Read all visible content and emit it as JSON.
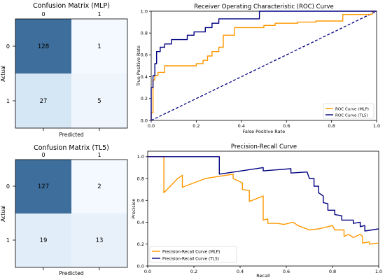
{
  "chart_data": [
    {
      "type": "heatmap",
      "title": "Confusion Matrix (MLP)",
      "xlabel": "Predicted",
      "ylabel": "Actual",
      "x_ticks": [
        "0",
        "1"
      ],
      "y_ticks": [
        "0",
        "1"
      ],
      "values": [
        [
          128,
          1
        ],
        [
          27,
          5
        ]
      ]
    },
    {
      "type": "line",
      "title": "Receiver Operating Characteristic (ROC) Curve",
      "xlabel": "False Positive Rate",
      "ylabel": "True Positive Rate",
      "xlim": [
        0,
        1
      ],
      "ylim": [
        0,
        1
      ],
      "x_ticks": [
        "0.0",
        "0.2",
        "0.4",
        "0.6",
        "0.8",
        "1.0"
      ],
      "y_ticks": [
        "0.0",
        "0.2",
        "0.4",
        "0.6",
        "0.8",
        "1.0"
      ],
      "legend": "lower right",
      "series": [
        {
          "name": "ROC Curve (MLP)",
          "color": "#ff9800",
          "points": [
            [
              0,
              0
            ],
            [
              0,
              0.07
            ],
            [
              0.008,
              0.07
            ],
            [
              0.008,
              0.22
            ],
            [
              0.008,
              0.37
            ],
            [
              0.016,
              0.37
            ],
            [
              0.016,
              0.41
            ],
            [
              0.03,
              0.41
            ],
            [
              0.03,
              0.44
            ],
            [
              0.06,
              0.44
            ],
            [
              0.06,
              0.5
            ],
            [
              0.2,
              0.5
            ],
            [
              0.2,
              0.52
            ],
            [
              0.23,
              0.52
            ],
            [
              0.23,
              0.55
            ],
            [
              0.25,
              0.55
            ],
            [
              0.25,
              0.59
            ],
            [
              0.27,
              0.59
            ],
            [
              0.27,
              0.63
            ],
            [
              0.3,
              0.63
            ],
            [
              0.3,
              0.67
            ],
            [
              0.32,
              0.67
            ],
            [
              0.32,
              0.78
            ],
            [
              0.37,
              0.78
            ],
            [
              0.37,
              0.85
            ],
            [
              0.5,
              0.85
            ],
            [
              0.5,
              0.87
            ],
            [
              0.55,
              0.87
            ],
            [
              0.55,
              0.89
            ],
            [
              0.57,
              0.89
            ],
            [
              0.65,
              0.89
            ],
            [
              0.65,
              0.9
            ],
            [
              0.73,
              0.9
            ],
            [
              0.73,
              0.91
            ],
            [
              0.85,
              0.91
            ],
            [
              0.85,
              0.97
            ],
            [
              0.98,
              0.97
            ],
            [
              0.98,
              1.0
            ],
            [
              1.0,
              1.0
            ]
          ]
        },
        {
          "name": "ROC Curve (TL5)",
          "color": "#000080",
          "points": [
            [
              0,
              0
            ],
            [
              0,
              0.3
            ],
            [
              0.008,
              0.3
            ],
            [
              0.008,
              0.41
            ],
            [
              0.016,
              0.41
            ],
            [
              0.016,
              0.52
            ],
            [
              0.024,
              0.52
            ],
            [
              0.024,
              0.63
            ],
            [
              0.04,
              0.63
            ],
            [
              0.04,
              0.67
            ],
            [
              0.06,
              0.67
            ],
            [
              0.06,
              0.7
            ],
            [
              0.09,
              0.7
            ],
            [
              0.09,
              0.74
            ],
            [
              0.16,
              0.74
            ],
            [
              0.16,
              0.78
            ],
            [
              0.19,
              0.78
            ],
            [
              0.19,
              0.81
            ],
            [
              0.24,
              0.81
            ],
            [
              0.24,
              0.85
            ],
            [
              0.27,
              0.85
            ],
            [
              0.27,
              0.89
            ],
            [
              0.3,
              0.89
            ],
            [
              0.3,
              0.93
            ],
            [
              0.48,
              0.93
            ],
            [
              0.48,
              1.0
            ],
            [
              1.0,
              1.0
            ]
          ]
        }
      ],
      "reference_line": [
        [
          0,
          0
        ],
        [
          1,
          1
        ]
      ]
    },
    {
      "type": "heatmap",
      "title": "Confusion Matrix (TL5)",
      "xlabel": "Predicted",
      "ylabel": "Actual",
      "x_ticks": [
        "0",
        "1"
      ],
      "y_ticks": [
        "0",
        "1"
      ],
      "values": [
        [
          127,
          2
        ],
        [
          19,
          13
        ]
      ]
    },
    {
      "type": "line",
      "title": "Precision-Recall Curve",
      "xlabel": "Recall",
      "ylabel": "Precision",
      "xlim": [
        0,
        1
      ],
      "ylim": [
        0,
        1.05
      ],
      "x_ticks": [
        "0.0",
        "0.2",
        "0.4",
        "0.6",
        "0.8",
        "1.0"
      ],
      "y_ticks": [
        "0.0",
        "0.2",
        "0.4",
        "0.6",
        "0.8",
        "1.0"
      ],
      "legend": "lower left",
      "series": [
        {
          "name": "Precision-Recall Curve (MLP)",
          "color": "#ff9800",
          "points": [
            [
              0,
              1.0
            ],
            [
              0.07,
              1.0
            ],
            [
              0.07,
              0.67
            ],
            [
              0.13,
              0.8
            ],
            [
              0.15,
              0.83
            ],
            [
              0.15,
              0.72
            ],
            [
              0.25,
              0.8
            ],
            [
              0.37,
              0.84
            ],
            [
              0.37,
              0.8
            ],
            [
              0.41,
              0.76
            ],
            [
              0.41,
              0.7
            ],
            [
              0.44,
              0.69
            ],
            [
              0.44,
              0.59
            ],
            [
              0.5,
              0.64
            ],
            [
              0.5,
              0.42
            ],
            [
              0.52,
              0.43
            ],
            [
              0.52,
              0.39
            ],
            [
              0.56,
              0.39
            ],
            [
              0.59,
              0.38
            ],
            [
              0.63,
              0.4
            ],
            [
              0.65,
              0.37
            ],
            [
              0.7,
              0.33
            ],
            [
              0.74,
              0.34
            ],
            [
              0.78,
              0.36
            ],
            [
              0.8,
              0.37
            ],
            [
              0.81,
              0.33
            ],
            [
              0.85,
              0.33
            ],
            [
              0.85,
              0.27
            ],
            [
              0.87,
              0.29
            ],
            [
              0.89,
              0.26
            ],
            [
              0.92,
              0.29
            ],
            [
              0.93,
              0.27
            ],
            [
              0.93,
              0.21
            ],
            [
              0.96,
              0.22
            ],
            [
              0.96,
              0.2
            ],
            [
              1.0,
              0.21
            ]
          ]
        },
        {
          "name": "Precision-Recall Curve (TL5)",
          "color": "#000080",
          "points": [
            [
              0,
              1.0
            ],
            [
              0.31,
              1.0
            ],
            [
              0.31,
              0.84
            ],
            [
              0.5,
              0.9
            ],
            [
              0.5,
              0.87
            ],
            [
              0.56,
              0.88
            ],
            [
              0.62,
              0.89
            ],
            [
              0.62,
              0.85
            ],
            [
              0.69,
              0.86
            ],
            [
              0.7,
              0.8
            ],
            [
              0.72,
              0.8
            ],
            [
              0.72,
              0.73
            ],
            [
              0.74,
              0.73
            ],
            [
              0.74,
              0.67
            ],
            [
              0.76,
              0.64
            ],
            [
              0.76,
              0.58
            ],
            [
              0.78,
              0.57
            ],
            [
              0.78,
              0.51
            ],
            [
              0.81,
              0.51
            ],
            [
              0.81,
              0.47
            ],
            [
              0.84,
              0.46
            ],
            [
              0.84,
              0.42
            ],
            [
              0.89,
              0.42
            ],
            [
              0.89,
              0.39
            ],
            [
              0.92,
              0.4
            ],
            [
              0.92,
              0.36
            ],
            [
              0.94,
              0.37
            ],
            [
              0.94,
              0.32
            ],
            [
              0.97,
              0.33
            ],
            [
              1.0,
              0.34
            ]
          ]
        }
      ]
    }
  ]
}
